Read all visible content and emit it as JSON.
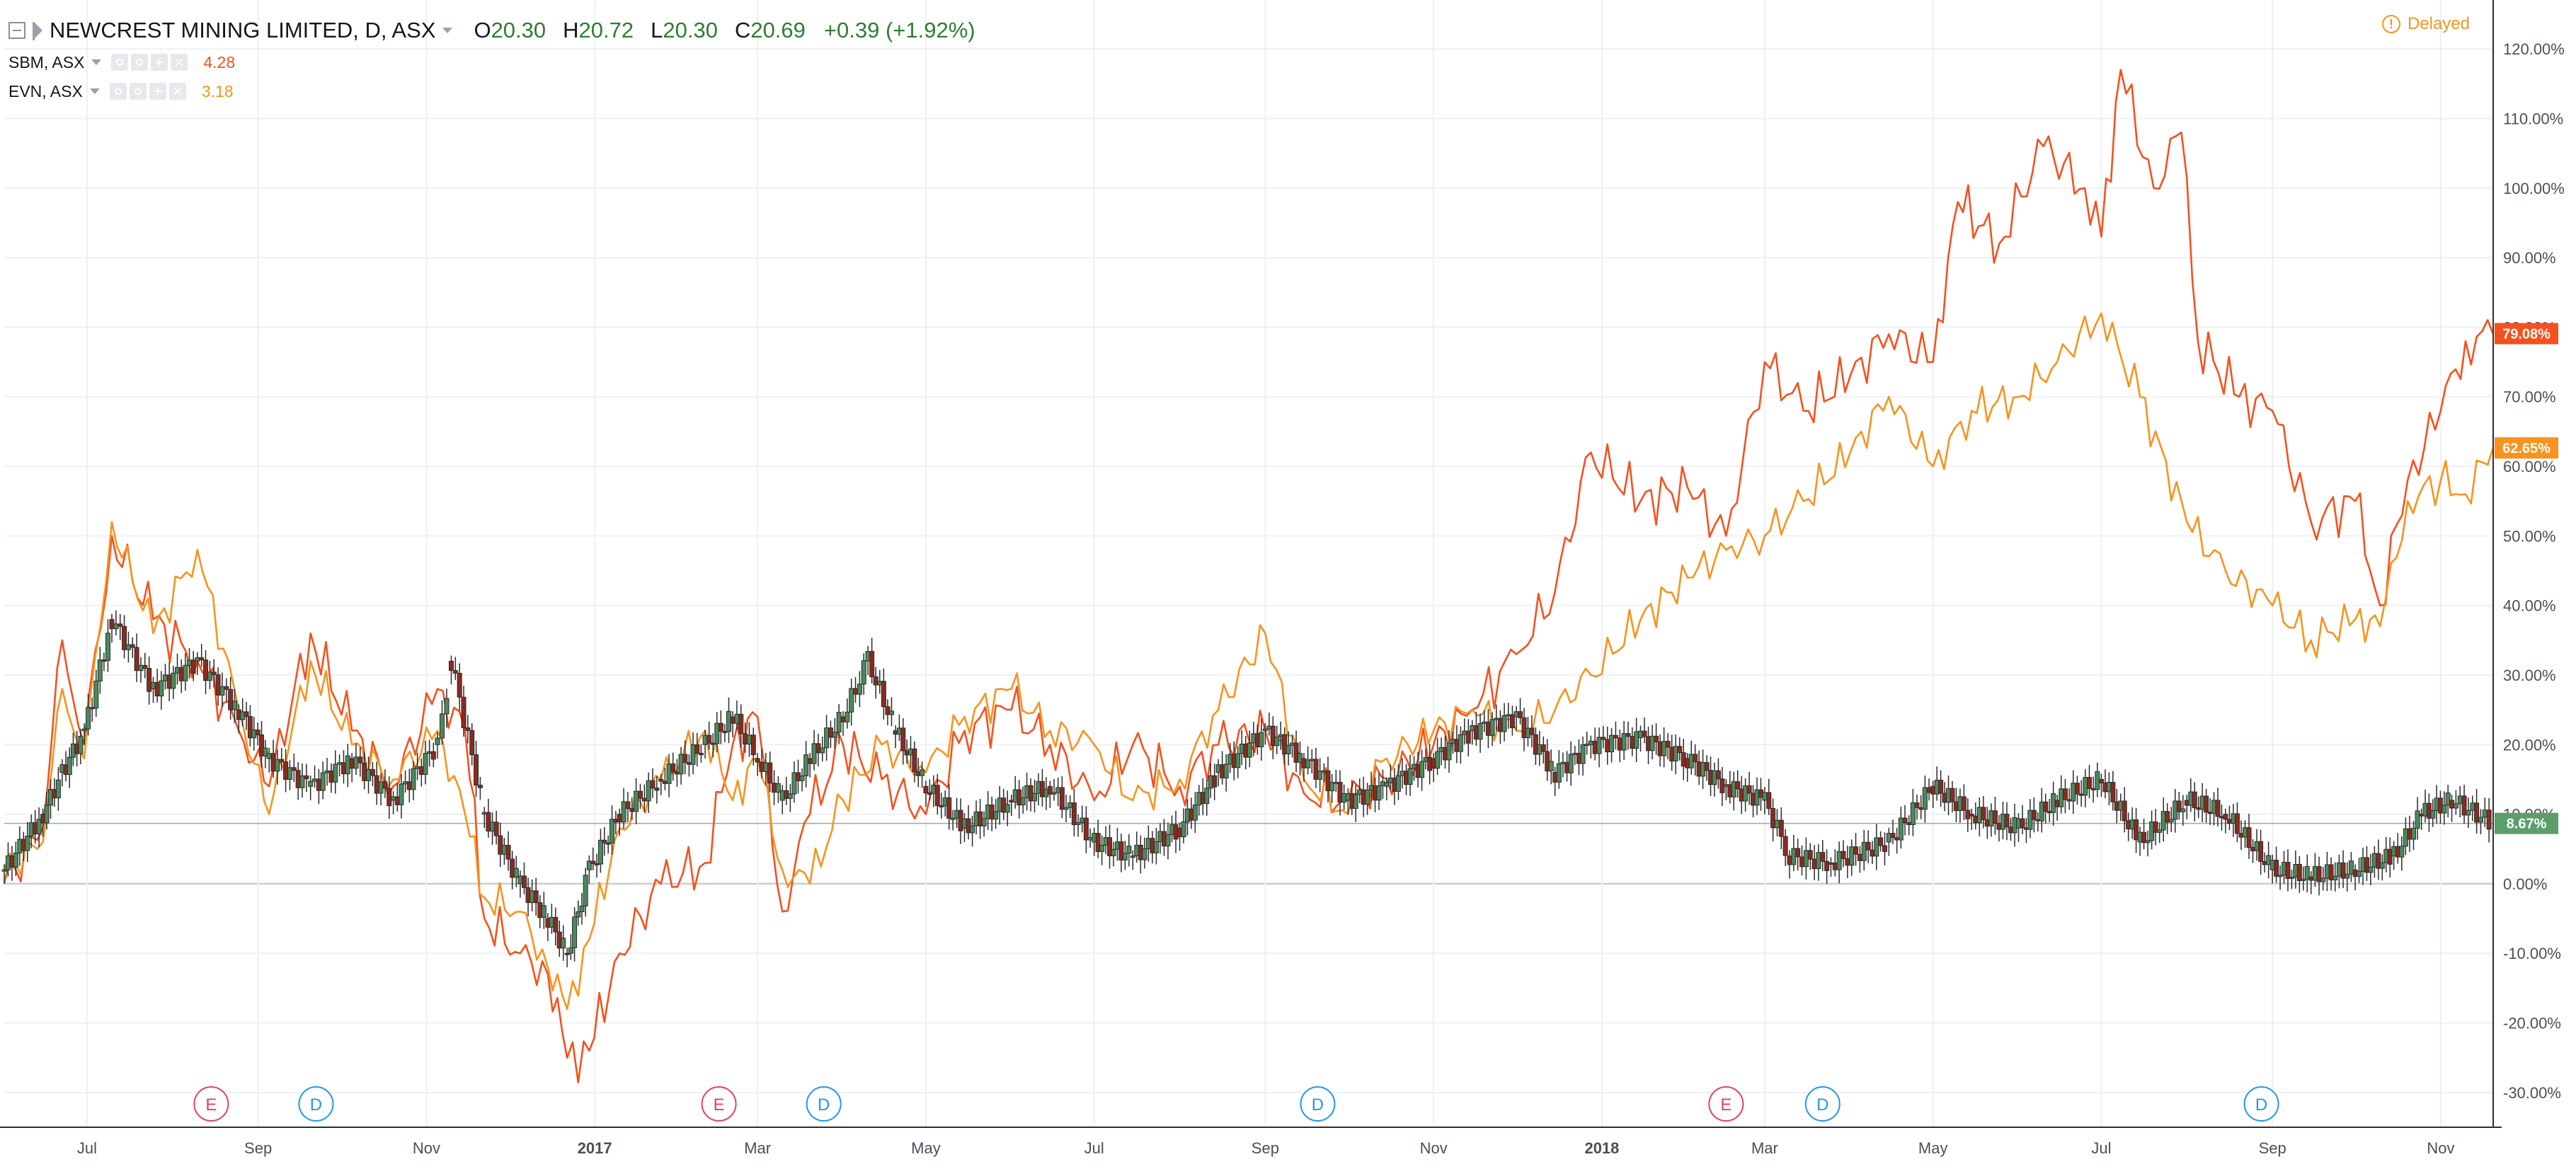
{
  "legend": {
    "main_symbol": "NEWCREST MINING LIMITED, D, ASX",
    "open_label": "O",
    "open_value": "20.30",
    "high_label": "H",
    "high_value": "20.72",
    "low_label": "L",
    "low_value": "20.30",
    "close_label": "C",
    "close_value": "20.69",
    "change": "+0.39 (+1.92%)",
    "comparisons": [
      {
        "symbol": "SBM, ASX",
        "value": "4.28",
        "color": "#f4511e"
      },
      {
        "symbol": "EVN, ASX",
        "value": "3.18",
        "color": "#f7931e"
      }
    ]
  },
  "status": {
    "delayed_label": "Delayed",
    "icon": "warning-icon"
  },
  "colors": {
    "up": "#26a69a",
    "down": "#ef5350",
    "candle_up_fill": "#4a8a5e",
    "candle_down_fill": "#8b2a1f",
    "sbm": "#f4511e",
    "evn": "#f7931e",
    "ncm_badge": "#5b9e6b",
    "grid": "#eef0f3",
    "axis_text": "#4a4f59",
    "earnings": "#e53e6b",
    "dividend": "#2196f3"
  },
  "chart_data": {
    "type": "line",
    "y_axis": {
      "unit": "percent",
      "ticks": [
        "120.00%",
        "110.00%",
        "100.00%",
        "90.00%",
        "80.00%",
        "70.00%",
        "60.00%",
        "50.00%",
        "40.00%",
        "30.00%",
        "20.00%",
        "10.00%",
        "0.00%",
        "-10.00%",
        "-20.00%",
        "-30.00%"
      ],
      "tick_values": [
        120,
        110,
        100,
        90,
        80,
        70,
        60,
        50,
        40,
        30,
        20,
        10,
        0,
        -10,
        -20,
        -30
      ],
      "range": [
        -35,
        125
      ]
    },
    "x_axis": {
      "range": [
        "2016-06-01",
        "2018-11-20"
      ],
      "ticks": [
        {
          "label": "Jul",
          "date": "2016-07-01",
          "bold": false
        },
        {
          "label": "Sep",
          "date": "2016-09-01",
          "bold": false
        },
        {
          "label": "Nov",
          "date": "2016-11-01",
          "bold": false
        },
        {
          "label": "2017",
          "date": "2017-01-01",
          "bold": true
        },
        {
          "label": "Mar",
          "date": "2017-03-01",
          "bold": false
        },
        {
          "label": "May",
          "date": "2017-05-01",
          "bold": false
        },
        {
          "label": "Jul",
          "date": "2017-07-01",
          "bold": false
        },
        {
          "label": "Sep",
          "date": "2017-09-01",
          "bold": false
        },
        {
          "label": "Nov",
          "date": "2017-11-01",
          "bold": false
        },
        {
          "label": "2018",
          "date": "2018-01-01",
          "bold": true
        },
        {
          "label": "Mar",
          "date": "2018-03-01",
          "bold": false
        },
        {
          "label": "May",
          "date": "2018-05-01",
          "bold": false
        },
        {
          "label": "Jul",
          "date": "2018-07-01",
          "bold": false
        },
        {
          "label": "Sep",
          "date": "2018-09-01",
          "bold": false
        },
        {
          "label": "Nov",
          "date": "2018-11-01",
          "bold": false
        }
      ]
    },
    "series": [
      {
        "name": "SBM, ASX",
        "color": "#f4511e",
        "points": [
          [
            "2016-06-01",
            0
          ],
          [
            "2016-06-15",
            8
          ],
          [
            "2016-06-22",
            35
          ],
          [
            "2016-06-30",
            20
          ],
          [
            "2016-07-10",
            50
          ],
          [
            "2016-07-25",
            38
          ],
          [
            "2016-08-10",
            32
          ],
          [
            "2016-08-25",
            22
          ],
          [
            "2016-09-05",
            14
          ],
          [
            "2016-09-20",
            36
          ],
          [
            "2016-10-05",
            22
          ],
          [
            "2016-10-20",
            14
          ],
          [
            "2016-11-05",
            28
          ],
          [
            "2016-11-15",
            22
          ],
          [
            "2016-11-22",
            -5
          ],
          [
            "2016-12-05",
            -10
          ],
          [
            "2016-12-15",
            -13
          ],
          [
            "2016-12-22",
            -25
          ],
          [
            "2016-12-30",
            -24
          ],
          [
            "2017-01-10",
            -10
          ],
          [
            "2017-01-25",
            0
          ],
          [
            "2017-02-10",
            3
          ],
          [
            "2017-02-20",
            20
          ],
          [
            "2017-03-01",
            24
          ],
          [
            "2017-03-10",
            -4
          ],
          [
            "2017-03-20",
            10
          ],
          [
            "2017-04-01",
            20
          ],
          [
            "2017-04-15",
            15
          ],
          [
            "2017-05-01",
            10
          ],
          [
            "2017-05-15",
            22
          ],
          [
            "2017-06-01",
            25
          ],
          [
            "2017-06-15",
            20
          ],
          [
            "2017-07-01",
            12
          ],
          [
            "2017-07-15",
            20
          ],
          [
            "2017-08-01",
            14
          ],
          [
            "2017-08-15",
            20
          ],
          [
            "2017-09-01",
            22
          ],
          [
            "2017-09-15",
            13
          ],
          [
            "2017-10-01",
            12
          ],
          [
            "2017-10-15",
            15
          ],
          [
            "2017-11-01",
            20
          ],
          [
            "2017-11-15",
            25
          ],
          [
            "2017-12-01",
            33
          ],
          [
            "2017-12-15",
            42
          ],
          [
            "2017-12-28",
            62
          ],
          [
            "2018-01-15",
            55
          ],
          [
            "2018-02-01",
            57
          ],
          [
            "2018-02-15",
            50
          ],
          [
            "2018-03-01",
            75
          ],
          [
            "2018-03-15",
            68
          ],
          [
            "2018-04-01",
            73
          ],
          [
            "2018-04-15",
            79
          ],
          [
            "2018-05-01",
            75
          ],
          [
            "2018-05-10",
            98
          ],
          [
            "2018-05-25",
            92
          ],
          [
            "2018-06-10",
            106
          ],
          [
            "2018-06-25",
            100
          ],
          [
            "2018-07-01",
            93
          ],
          [
            "2018-07-08",
            117
          ],
          [
            "2018-07-20",
            100
          ],
          [
            "2018-07-30",
            108
          ],
          [
            "2018-08-05",
            78
          ],
          [
            "2018-08-20",
            70
          ],
          [
            "2018-09-01",
            68
          ],
          [
            "2018-09-15",
            52
          ],
          [
            "2018-10-01",
            55
          ],
          [
            "2018-10-10",
            40
          ],
          [
            "2018-10-20",
            58
          ],
          [
            "2018-11-01",
            68
          ],
          [
            "2018-11-10",
            78
          ],
          [
            "2018-11-20",
            79
          ]
        ]
      },
      {
        "name": "EVN, ASX",
        "color": "#f7931e",
        "points": [
          [
            "2016-06-01",
            2
          ],
          [
            "2016-06-15",
            6
          ],
          [
            "2016-06-22",
            28
          ],
          [
            "2016-06-30",
            18
          ],
          [
            "2016-07-10",
            52
          ],
          [
            "2016-07-25",
            36
          ],
          [
            "2016-08-10",
            48
          ],
          [
            "2016-08-25",
            25
          ],
          [
            "2016-09-05",
            10
          ],
          [
            "2016-09-20",
            32
          ],
          [
            "2016-10-05",
            20
          ],
          [
            "2016-10-20",
            15
          ],
          [
            "2016-11-05",
            22
          ],
          [
            "2016-11-15",
            10
          ],
          [
            "2016-11-22",
            -2
          ],
          [
            "2016-12-05",
            -4
          ],
          [
            "2016-12-15",
            -12
          ],
          [
            "2016-12-22",
            -18
          ],
          [
            "2016-12-30",
            -8
          ],
          [
            "2017-01-10",
            8
          ],
          [
            "2017-01-25",
            15
          ],
          [
            "2017-02-10",
            22
          ],
          [
            "2017-02-20",
            12
          ],
          [
            "2017-03-01",
            18
          ],
          [
            "2017-03-10",
            2
          ],
          [
            "2017-03-20",
            0
          ],
          [
            "2017-04-01",
            12
          ],
          [
            "2017-04-15",
            20
          ],
          [
            "2017-05-01",
            16
          ],
          [
            "2017-05-15",
            24
          ],
          [
            "2017-06-01",
            28
          ],
          [
            "2017-06-15",
            22
          ],
          [
            "2017-07-01",
            20
          ],
          [
            "2017-07-15",
            12
          ],
          [
            "2017-08-01",
            15
          ],
          [
            "2017-08-15",
            25
          ],
          [
            "2017-09-01",
            36
          ],
          [
            "2017-09-15",
            15
          ],
          [
            "2017-10-01",
            10
          ],
          [
            "2017-10-15",
            18
          ],
          [
            "2017-11-01",
            22
          ],
          [
            "2017-11-15",
            25
          ],
          [
            "2017-12-01",
            22
          ],
          [
            "2017-12-15",
            25
          ],
          [
            "2017-12-28",
            30
          ],
          [
            "2018-01-15",
            38
          ],
          [
            "2018-02-01",
            44
          ],
          [
            "2018-02-15",
            48
          ],
          [
            "2018-03-01",
            50
          ],
          [
            "2018-03-15",
            55
          ],
          [
            "2018-04-01",
            62
          ],
          [
            "2018-04-15",
            70
          ],
          [
            "2018-05-01",
            60
          ],
          [
            "2018-05-15",
            68
          ],
          [
            "2018-06-01",
            70
          ],
          [
            "2018-06-15",
            75
          ],
          [
            "2018-07-01",
            82
          ],
          [
            "2018-07-15",
            70
          ],
          [
            "2018-08-01",
            52
          ],
          [
            "2018-08-15",
            45
          ],
          [
            "2018-09-01",
            40
          ],
          [
            "2018-09-15",
            35
          ],
          [
            "2018-10-01",
            38
          ],
          [
            "2018-10-10",
            37
          ],
          [
            "2018-10-20",
            55
          ],
          [
            "2018-11-01",
            58
          ],
          [
            "2018-11-10",
            56
          ],
          [
            "2018-11-20",
            62.65
          ]
        ]
      },
      {
        "name": "NEWCREST MINING LIMITED",
        "type": "candlestick",
        "points": [
          [
            "2016-06-01",
            2
          ],
          [
            "2016-06-15",
            10
          ],
          [
            "2016-06-22",
            16
          ],
          [
            "2016-06-30",
            22
          ],
          [
            "2016-07-10",
            38
          ],
          [
            "2016-07-25",
            28
          ],
          [
            "2016-08-10",
            32
          ],
          [
            "2016-08-25",
            25
          ],
          [
            "2016-09-05",
            18
          ],
          [
            "2016-09-20",
            14
          ],
          [
            "2016-10-05",
            18
          ],
          [
            "2016-10-20",
            12
          ],
          [
            "2016-11-05",
            20
          ],
          [
            "2016-11-10",
            32
          ],
          [
            "2016-11-22",
            10
          ],
          [
            "2016-12-05",
            0
          ],
          [
            "2016-12-15",
            -5
          ],
          [
            "2016-12-22",
            -10
          ],
          [
            "2016-12-30",
            2
          ],
          [
            "2017-01-10",
            10
          ],
          [
            "2017-01-25",
            15
          ],
          [
            "2017-02-10",
            20
          ],
          [
            "2017-02-20",
            24
          ],
          [
            "2017-03-01",
            18
          ],
          [
            "2017-03-10",
            12
          ],
          [
            "2017-03-20",
            18
          ],
          [
            "2017-04-01",
            24
          ],
          [
            "2017-04-10",
            32
          ],
          [
            "2017-04-20",
            22
          ],
          [
            "2017-05-01",
            14
          ],
          [
            "2017-05-15",
            8
          ],
          [
            "2017-06-01",
            12
          ],
          [
            "2017-06-15",
            14
          ],
          [
            "2017-07-01",
            6
          ],
          [
            "2017-07-15",
            4
          ],
          [
            "2017-08-01",
            8
          ],
          [
            "2017-08-15",
            16
          ],
          [
            "2017-09-01",
            22
          ],
          [
            "2017-09-15",
            18
          ],
          [
            "2017-10-01",
            12
          ],
          [
            "2017-10-15",
            14
          ],
          [
            "2017-11-01",
            18
          ],
          [
            "2017-11-15",
            22
          ],
          [
            "2017-12-01",
            24
          ],
          [
            "2017-12-15",
            16
          ],
          [
            "2017-12-28",
            20
          ],
          [
            "2018-01-15",
            21
          ],
          [
            "2018-02-01",
            18
          ],
          [
            "2018-02-15",
            14
          ],
          [
            "2018-03-01",
            12
          ],
          [
            "2018-03-10",
            4
          ],
          [
            "2018-03-25",
            3
          ],
          [
            "2018-04-15",
            6
          ],
          [
            "2018-05-01",
            14
          ],
          [
            "2018-05-15",
            10
          ],
          [
            "2018-06-01",
            8
          ],
          [
            "2018-06-15",
            12
          ],
          [
            "2018-07-01",
            15
          ],
          [
            "2018-07-15",
            6
          ],
          [
            "2018-08-01",
            12
          ],
          [
            "2018-08-15",
            10
          ],
          [
            "2018-09-01",
            2
          ],
          [
            "2018-09-15",
            1
          ],
          [
            "2018-10-01",
            2
          ],
          [
            "2018-10-15",
            4
          ],
          [
            "2018-10-25",
            10
          ],
          [
            "2018-11-05",
            12
          ],
          [
            "2018-11-20",
            8.67
          ]
        ]
      }
    ],
    "price_badges": [
      {
        "label": "79.08%",
        "value": 79.08,
        "color": "#f4511e"
      },
      {
        "label": "62.65%",
        "value": 62.65,
        "color": "#f7931e"
      },
      {
        "label": "8.67%",
        "value": 8.67,
        "color": "#5b9e6b"
      }
    ],
    "events": [
      {
        "label": "E",
        "date": "2016-08-15",
        "kind": "earnings"
      },
      {
        "label": "D",
        "date": "2016-09-22",
        "kind": "dividend"
      },
      {
        "label": "E",
        "date": "2017-02-15",
        "kind": "earnings"
      },
      {
        "label": "D",
        "date": "2017-03-25",
        "kind": "dividend"
      },
      {
        "label": "D",
        "date": "2017-09-20",
        "kind": "dividend"
      },
      {
        "label": "E",
        "date": "2018-02-15",
        "kind": "earnings"
      },
      {
        "label": "D",
        "date": "2018-03-22",
        "kind": "dividend"
      },
      {
        "label": "D",
        "date": "2018-08-28",
        "kind": "dividend"
      }
    ]
  }
}
